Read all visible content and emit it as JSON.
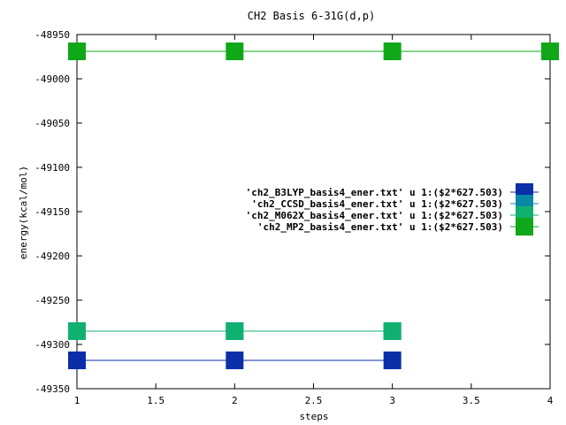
{
  "chart_data": {
    "type": "line",
    "title": "CH2 Basis 6-31G(d,p)",
    "xlabel": "steps",
    "ylabel": "energy(kcal/mol)",
    "xlim": [
      1,
      4
    ],
    "ylim": [
      -49350,
      -48950
    ],
    "xticks": [
      1,
      1.5,
      2,
      2.5,
      3,
      3.5,
      4
    ],
    "xtick_labels": [
      "1",
      "1.5",
      "2",
      "2.5",
      "3",
      "3.5",
      "4"
    ],
    "yticks": [
      -48950,
      -49000,
      -49050,
      -49100,
      -49150,
      -49200,
      -49250,
      -49300,
      -49350
    ],
    "ytick_labels": [
      "-48950",
      "-49000",
      "-49050",
      "-49100",
      "-49150",
      "-49200",
      "-49250",
      "-49300",
      "-49350"
    ],
    "grid": false,
    "legend_position": "right",
    "series": [
      {
        "name": "'ch2_B3LYP_basis4_ener.txt' u 1:($2*627.503)",
        "color": "#0a2fa8",
        "x": [
          1,
          2,
          3
        ],
        "y": [
          -49318,
          -49318,
          -49318
        ]
      },
      {
        "name": "'ch2_CCSD_basis4_ener.txt' u 1:($2*627.503)",
        "color": "#0a88a8",
        "x": [
          1,
          2,
          3
        ],
        "y": [
          -49285,
          -49285,
          -49285
        ]
      },
      {
        "name": "'ch2_M062X_basis4_ener.txt' u 1:($2*627.503)",
        "color": "#10b070",
        "x": [
          1,
          2,
          3
        ],
        "y": [
          -49285,
          -49285,
          -49285
        ]
      },
      {
        "name": "'ch2_MP2_basis4_ener.txt' u 1:($2*627.503)",
        "color": "#10a818",
        "x": [
          1,
          2,
          3,
          4
        ],
        "y": [
          -48969,
          -48969,
          -48969,
          -48969
        ]
      }
    ]
  }
}
